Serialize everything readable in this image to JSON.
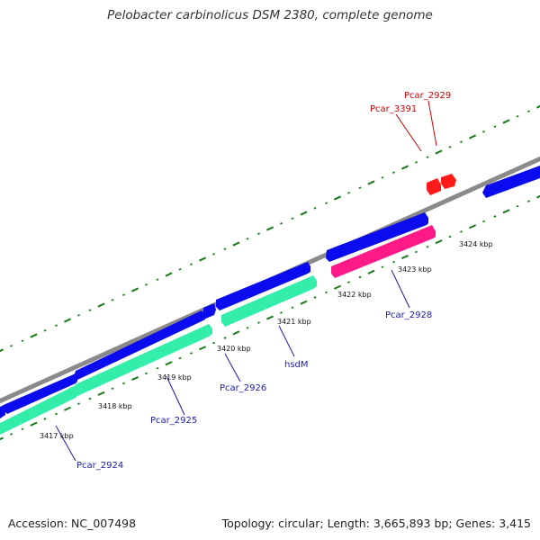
{
  "title": "Pelobacter carbinolicus DSM 2380, complete genome",
  "footer": {
    "accession": "Accession: NC_007498",
    "summary": "Topology: circular; Length: 3,665,893 bp; Genes: 3,415"
  },
  "colors": {
    "backbone": "#8a8a8a",
    "forward_cds": "#0b0bf0",
    "reverse_cds": "#0b0bf0",
    "rna": "#ff1a1a",
    "highlight_teal": "#33eeaa",
    "highlight_pink": "#ff1a88",
    "ticks": "#1b7a1b",
    "label_blue": "#1a1ab0",
    "label_red": "#cc0000"
  },
  "kbp_labels": [
    "3417 kbp",
    "3418 kbp",
    "3419 kbp",
    "3420 kbp",
    "3421 kbp",
    "3422 kbp",
    "3423 kbp",
    "3424 kbp"
  ],
  "gene_labels": [
    {
      "text": "Pcar_2924",
      "color": "blue"
    },
    {
      "text": "Pcar_2925",
      "color": "blue"
    },
    {
      "text": "Pcar_2926",
      "color": "blue"
    },
    {
      "text": "hsdM",
      "color": "blue"
    },
    {
      "text": "Pcar_2928",
      "color": "blue"
    },
    {
      "text": "Pcar_3391",
      "color": "red"
    },
    {
      "text": "Pcar_2929",
      "color": "red"
    }
  ]
}
